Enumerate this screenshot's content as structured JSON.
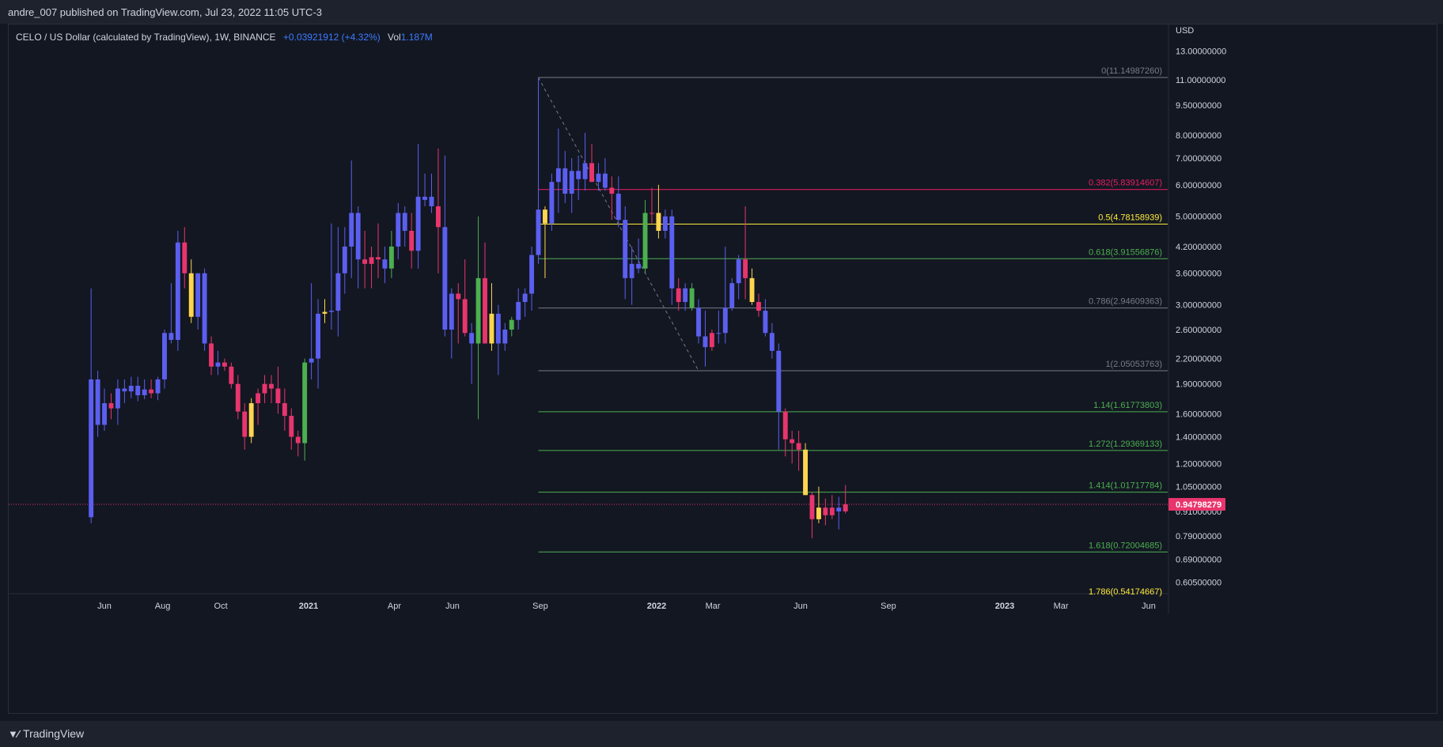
{
  "header": {
    "published": "andre_007 published on TradingView.com, Jul 23, 2022 11:05 UTC-3"
  },
  "legend": {
    "symbol": "CELO / US Dollar (calculated by TradingView), 1W, BINANCE",
    "change": "+0.03921912 (+4.32%)",
    "vol_label": "Vol",
    "vol_value": "1.187M"
  },
  "footer": {
    "brand": "TradingView"
  },
  "chart_data": {
    "type": "candlestick",
    "currency": "USD",
    "y_scale": "log",
    "ylim": [
      0.55,
      14.5
    ],
    "y_ticks": [
      "13.00000000",
      "11.00000000",
      "9.50000000",
      "8.00000000",
      "7.00000000",
      "6.00000000",
      "5.00000000",
      "4.20000000",
      "3.60000000",
      "3.00000000",
      "2.60000000",
      "2.20000000",
      "1.90000000",
      "1.60000000",
      "1.40000000",
      "1.20000000",
      "1.05000000",
      "0.91000000",
      "0.79000000",
      "0.69000000",
      "0.60500000"
    ],
    "x_ticks": [
      {
        "label": "Jun",
        "date": "2020-06-01"
      },
      {
        "label": "Aug",
        "date": "2020-08-01"
      },
      {
        "label": "Oct",
        "date": "2020-10-01"
      },
      {
        "label": "2021",
        "date": "2021-01-01",
        "bold": true
      },
      {
        "label": "Apr",
        "date": "2021-04-01"
      },
      {
        "label": "Jun",
        "date": "2021-06-01"
      },
      {
        "label": "Sep",
        "date": "2021-09-01"
      },
      {
        "label": "2022",
        "date": "2022-01-01",
        "bold": true
      },
      {
        "label": "Mar",
        "date": "2022-03-01"
      },
      {
        "label": "Jun",
        "date": "2022-06-01"
      },
      {
        "label": "Sep",
        "date": "2022-09-01"
      },
      {
        "label": "2023",
        "date": "2023-01-01",
        "bold": true
      },
      {
        "label": "Mar",
        "date": "2023-03-01"
      },
      {
        "label": "Jun",
        "date": "2023-06-01"
      }
    ],
    "last_price": "0.94798279",
    "last_price_value": 0.948,
    "fib": {
      "from_date": "2021-08-30",
      "to_date": "2023-07-15",
      "trend_from": {
        "date": "2021-08-30",
        "price": 11.15
      },
      "trend_to": {
        "date": "2022-02-14",
        "price": 2.05
      },
      "levels": [
        {
          "label": "0(11.14987260)",
          "value": 11.1498726,
          "color": "#787b86"
        },
        {
          "label": "0.382(5.83914607)",
          "value": 5.83914607,
          "color": "#e91e63"
        },
        {
          "label": "0.5(4.78158939)",
          "value": 4.78158939,
          "color": "#ffeb3b"
        },
        {
          "label": "0.618(3.91556876)",
          "value": 3.91556876,
          "color": "#4caf50"
        },
        {
          "label": "0.786(2.94609363)",
          "value": 2.94609363,
          "color": "#787b86"
        },
        {
          "label": "1(2.05053763)",
          "value": 2.05053763,
          "color": "#787b86"
        },
        {
          "label": "1.14(1.61773803)",
          "value": 1.61773803,
          "color": "#4caf50"
        },
        {
          "label": "1.272(1.29369133)",
          "value": 1.29369133,
          "color": "#4caf50"
        },
        {
          "label": "1.414(1.01717784)",
          "value": 1.01717784,
          "color": "#4caf50"
        },
        {
          "label": "1.618(0.72004685)",
          "value": 0.72004685,
          "color": "#4caf50"
        },
        {
          "label": "1.786(0.54174667)",
          "value": 0.54174667,
          "color": "#ffeb3b"
        }
      ]
    },
    "colors": {
      "up": "#5b5ff0",
      "down": "#e8356d",
      "yellow": "#ffd54f",
      "green": "#4caf50",
      "grid": "#2a2e39",
      "bg": "#131722"
    },
    "candles": [
      {
        "date": "2020-05-18",
        "o": 1.95,
        "h": 3.3,
        "l": 0.85,
        "c": 0.88,
        "k": "up"
      },
      {
        "date": "2020-05-25",
        "o": 1.95,
        "h": 2.05,
        "l": 1.4,
        "c": 1.5,
        "k": "up"
      },
      {
        "date": "2020-06-01",
        "o": 1.5,
        "h": 1.85,
        "l": 1.45,
        "c": 1.7,
        "k": "up"
      },
      {
        "date": "2020-06-08",
        "o": 1.7,
        "h": 1.8,
        "l": 1.55,
        "c": 1.65,
        "k": "down"
      },
      {
        "date": "2020-06-15",
        "o": 1.65,
        "h": 1.95,
        "l": 1.5,
        "c": 1.85,
        "k": "up"
      },
      {
        "date": "2020-06-22",
        "o": 1.85,
        "h": 1.95,
        "l": 1.7,
        "c": 1.82,
        "k": "up"
      },
      {
        "date": "2020-06-29",
        "o": 1.82,
        "h": 1.98,
        "l": 1.75,
        "c": 1.88,
        "k": "up"
      },
      {
        "date": "2020-07-06",
        "o": 1.88,
        "h": 1.98,
        "l": 1.72,
        "c": 1.78,
        "k": "up"
      },
      {
        "date": "2020-07-13",
        "o": 1.78,
        "h": 1.95,
        "l": 1.74,
        "c": 1.84,
        "k": "up"
      },
      {
        "date": "2020-07-20",
        "o": 1.84,
        "h": 1.95,
        "l": 1.75,
        "c": 1.8,
        "k": "down"
      },
      {
        "date": "2020-07-27",
        "o": 1.8,
        "h": 1.98,
        "l": 1.73,
        "c": 1.95,
        "k": "up"
      },
      {
        "date": "2020-08-03",
        "o": 1.95,
        "h": 2.6,
        "l": 1.85,
        "c": 2.55,
        "k": "up"
      },
      {
        "date": "2020-08-10",
        "o": 2.55,
        "h": 3.4,
        "l": 2.4,
        "c": 2.45,
        "k": "up"
      },
      {
        "date": "2020-08-17",
        "o": 2.45,
        "h": 4.6,
        "l": 2.3,
        "c": 4.3,
        "k": "up"
      },
      {
        "date": "2020-08-24",
        "o": 4.3,
        "h": 4.7,
        "l": 3.3,
        "c": 3.6,
        "k": "down"
      },
      {
        "date": "2020-08-31",
        "o": 3.6,
        "h": 3.9,
        "l": 2.7,
        "c": 2.8,
        "k": "yellow"
      },
      {
        "date": "2020-09-07",
        "o": 2.8,
        "h": 3.6,
        "l": 2.6,
        "c": 3.6,
        "k": "up"
      },
      {
        "date": "2020-09-14",
        "o": 3.6,
        "h": 3.7,
        "l": 2.3,
        "c": 2.4,
        "k": "up"
      },
      {
        "date": "2020-09-21",
        "o": 2.4,
        "h": 2.5,
        "l": 2.0,
        "c": 2.1,
        "k": "down"
      },
      {
        "date": "2020-09-28",
        "o": 2.1,
        "h": 2.3,
        "l": 2.0,
        "c": 2.15,
        "k": "up"
      },
      {
        "date": "2020-10-05",
        "o": 2.15,
        "h": 2.2,
        "l": 2.05,
        "c": 2.1,
        "k": "down"
      },
      {
        "date": "2020-10-12",
        "o": 2.1,
        "h": 2.15,
        "l": 1.85,
        "c": 1.9,
        "k": "down"
      },
      {
        "date": "2020-10-19",
        "o": 1.9,
        "h": 2.0,
        "l": 1.55,
        "c": 1.62,
        "k": "down"
      },
      {
        "date": "2020-10-26",
        "o": 1.62,
        "h": 1.7,
        "l": 1.3,
        "c": 1.4,
        "k": "down"
      },
      {
        "date": "2020-11-02",
        "o": 1.4,
        "h": 1.75,
        "l": 1.35,
        "c": 1.7,
        "k": "yellow"
      },
      {
        "date": "2020-11-09",
        "o": 1.7,
        "h": 1.85,
        "l": 1.5,
        "c": 1.8,
        "k": "down"
      },
      {
        "date": "2020-11-16",
        "o": 1.8,
        "h": 2.0,
        "l": 1.7,
        "c": 1.9,
        "k": "down"
      },
      {
        "date": "2020-11-23",
        "o": 1.9,
        "h": 2.0,
        "l": 1.7,
        "c": 1.85,
        "k": "down"
      },
      {
        "date": "2020-11-30",
        "o": 1.85,
        "h": 2.1,
        "l": 1.6,
        "c": 1.7,
        "k": "down"
      },
      {
        "date": "2020-12-07",
        "o": 1.7,
        "h": 1.85,
        "l": 1.45,
        "c": 1.58,
        "k": "down"
      },
      {
        "date": "2020-12-14",
        "o": 1.58,
        "h": 1.65,
        "l": 1.3,
        "c": 1.4,
        "k": "down"
      },
      {
        "date": "2020-12-21",
        "o": 1.4,
        "h": 1.45,
        "l": 1.25,
        "c": 1.35,
        "k": "down"
      },
      {
        "date": "2020-12-28",
        "o": 1.35,
        "h": 2.2,
        "l": 1.22,
        "c": 2.15,
        "k": "green"
      },
      {
        "date": "2021-01-04",
        "o": 2.15,
        "h": 3.4,
        "l": 1.95,
        "c": 2.2,
        "k": "up"
      },
      {
        "date": "2021-01-11",
        "o": 2.2,
        "h": 3.1,
        "l": 1.85,
        "c": 2.85,
        "k": "up"
      },
      {
        "date": "2021-01-18",
        "o": 2.85,
        "h": 3.1,
        "l": 2.7,
        "c": 2.88,
        "k": "yellow"
      },
      {
        "date": "2021-01-25",
        "o": 2.88,
        "h": 4.8,
        "l": 2.6,
        "c": 2.9,
        "k": "up"
      },
      {
        "date": "2021-02-01",
        "o": 2.9,
        "h": 4.7,
        "l": 2.5,
        "c": 3.6,
        "k": "up"
      },
      {
        "date": "2021-02-08",
        "o": 3.6,
        "h": 4.7,
        "l": 3.2,
        "c": 4.2,
        "k": "up"
      },
      {
        "date": "2021-02-15",
        "o": 4.2,
        "h": 6.9,
        "l": 3.5,
        "c": 5.1,
        "k": "up"
      },
      {
        "date": "2021-02-22",
        "o": 5.1,
        "h": 5.3,
        "l": 3.3,
        "c": 3.9,
        "k": "up"
      },
      {
        "date": "2021-03-01",
        "o": 3.9,
        "h": 4.6,
        "l": 3.3,
        "c": 3.8,
        "k": "down"
      },
      {
        "date": "2021-03-08",
        "o": 3.8,
        "h": 4.2,
        "l": 3.3,
        "c": 3.95,
        "k": "down"
      },
      {
        "date": "2021-03-15",
        "o": 3.95,
        "h": 4.8,
        "l": 3.5,
        "c": 3.9,
        "k": "down"
      },
      {
        "date": "2021-03-22",
        "o": 3.9,
        "h": 4.2,
        "l": 3.4,
        "c": 3.7,
        "k": "up"
      },
      {
        "date": "2021-03-29",
        "o": 3.7,
        "h": 4.6,
        "l": 3.5,
        "c": 4.2,
        "k": "green"
      },
      {
        "date": "2021-04-05",
        "o": 4.2,
        "h": 5.4,
        "l": 3.9,
        "c": 5.1,
        "k": "up"
      },
      {
        "date": "2021-04-12",
        "o": 5.1,
        "h": 5.3,
        "l": 4.2,
        "c": 4.6,
        "k": "up"
      },
      {
        "date": "2021-04-19",
        "o": 4.6,
        "h": 5.1,
        "l": 3.7,
        "c": 4.1,
        "k": "down"
      },
      {
        "date": "2021-04-26",
        "o": 4.1,
        "h": 7.6,
        "l": 3.7,
        "c": 5.6,
        "k": "up"
      },
      {
        "date": "2021-05-03",
        "o": 5.6,
        "h": 6.4,
        "l": 5.3,
        "c": 5.5,
        "k": "up"
      },
      {
        "date": "2021-05-10",
        "o": 5.6,
        "h": 6.4,
        "l": 5.1,
        "c": 5.3,
        "k": "up"
      },
      {
        "date": "2021-05-17",
        "o": 5.3,
        "h": 7.4,
        "l": 3.6,
        "c": 4.7,
        "k": "down"
      },
      {
        "date": "2021-05-24",
        "o": 4.7,
        "h": 7.1,
        "l": 2.5,
        "c": 2.6,
        "k": "up"
      },
      {
        "date": "2021-05-31",
        "o": 2.6,
        "h": 3.3,
        "l": 2.2,
        "c": 3.2,
        "k": "up"
      },
      {
        "date": "2021-06-07",
        "o": 3.2,
        "h": 3.4,
        "l": 2.4,
        "c": 3.1,
        "k": "down"
      },
      {
        "date": "2021-06-14",
        "o": 3.1,
        "h": 3.9,
        "l": 2.5,
        "c": 2.55,
        "k": "down"
      },
      {
        "date": "2021-06-21",
        "o": 2.55,
        "h": 2.7,
        "l": 1.9,
        "c": 2.4,
        "k": "up"
      },
      {
        "date": "2021-06-28",
        "o": 2.4,
        "h": 5.0,
        "l": 1.55,
        "c": 3.5,
        "k": "green"
      },
      {
        "date": "2021-07-05",
        "o": 3.5,
        "h": 4.3,
        "l": 2.5,
        "c": 2.4,
        "k": "down"
      },
      {
        "date": "2021-07-12",
        "o": 2.4,
        "h": 3.4,
        "l": 2.3,
        "c": 2.85,
        "k": "yellow"
      },
      {
        "date": "2021-07-19",
        "o": 2.85,
        "h": 3.0,
        "l": 2.0,
        "c": 2.4,
        "k": "up"
      },
      {
        "date": "2021-07-26",
        "o": 2.4,
        "h": 2.7,
        "l": 2.3,
        "c": 2.6,
        "k": "up"
      },
      {
        "date": "2021-08-02",
        "o": 2.6,
        "h": 2.8,
        "l": 2.5,
        "c": 2.75,
        "k": "green"
      },
      {
        "date": "2021-08-09",
        "o": 2.75,
        "h": 3.3,
        "l": 2.6,
        "c": 3.05,
        "k": "up"
      },
      {
        "date": "2021-08-16",
        "o": 3.05,
        "h": 3.3,
        "l": 2.8,
        "c": 3.2,
        "k": "up"
      },
      {
        "date": "2021-08-23",
        "o": 3.2,
        "h": 4.2,
        "l": 2.9,
        "c": 4.0,
        "k": "up"
      },
      {
        "date": "2021-08-30",
        "o": 4.0,
        "h": 11.1,
        "l": 3.8,
        "c": 5.2,
        "k": "up"
      },
      {
        "date": "2021-09-06",
        "o": 5.2,
        "h": 5.3,
        "l": 3.5,
        "c": 4.8,
        "k": "yellow"
      },
      {
        "date": "2021-09-13",
        "o": 4.8,
        "h": 6.4,
        "l": 4.6,
        "c": 6.1,
        "k": "up"
      },
      {
        "date": "2021-09-20",
        "o": 6.1,
        "h": 8.3,
        "l": 5.1,
        "c": 6.6,
        "k": "up"
      },
      {
        "date": "2021-09-27",
        "o": 6.6,
        "h": 7.3,
        "l": 5.4,
        "c": 5.7,
        "k": "up"
      },
      {
        "date": "2021-10-04",
        "o": 5.7,
        "h": 7.0,
        "l": 5.1,
        "c": 6.5,
        "k": "up"
      },
      {
        "date": "2021-10-11",
        "o": 6.5,
        "h": 7.1,
        "l": 5.5,
        "c": 6.2,
        "k": "up"
      },
      {
        "date": "2021-10-18",
        "o": 6.2,
        "h": 8.1,
        "l": 5.8,
        "c": 6.8,
        "k": "up"
      },
      {
        "date": "2021-10-25",
        "o": 6.8,
        "h": 7.6,
        "l": 6.1,
        "c": 6.1,
        "k": "down"
      },
      {
        "date": "2021-11-01",
        "o": 6.1,
        "h": 6.8,
        "l": 5.8,
        "c": 6.4,
        "k": "up"
      },
      {
        "date": "2021-11-08",
        "o": 6.4,
        "h": 7.0,
        "l": 5.8,
        "c": 5.9,
        "k": "up"
      },
      {
        "date": "2021-11-15",
        "o": 5.9,
        "h": 6.3,
        "l": 4.9,
        "c": 5.7,
        "k": "down"
      },
      {
        "date": "2021-11-22",
        "o": 5.7,
        "h": 6.3,
        "l": 4.7,
        "c": 4.9,
        "k": "up"
      },
      {
        "date": "2021-11-29",
        "o": 4.9,
        "h": 5.3,
        "l": 3.1,
        "c": 3.5,
        "k": "up"
      },
      {
        "date": "2021-12-06",
        "o": 3.5,
        "h": 4.2,
        "l": 3.0,
        "c": 3.8,
        "k": "up"
      },
      {
        "date": "2021-12-13",
        "o": 3.8,
        "h": 4.4,
        "l": 3.6,
        "c": 3.7,
        "k": "up"
      },
      {
        "date": "2021-12-20",
        "o": 3.7,
        "h": 5.5,
        "l": 3.6,
        "c": 5.1,
        "k": "green"
      },
      {
        "date": "2021-12-27",
        "o": 5.1,
        "h": 5.9,
        "l": 4.8,
        "c": 5.1,
        "k": "down"
      },
      {
        "date": "2022-01-03",
        "o": 5.1,
        "h": 6.0,
        "l": 4.4,
        "c": 4.6,
        "k": "yellow"
      },
      {
        "date": "2022-01-10",
        "o": 4.6,
        "h": 5.2,
        "l": 4.4,
        "c": 5.0,
        "k": "up"
      },
      {
        "date": "2022-01-17",
        "o": 5.0,
        "h": 5.2,
        "l": 3.0,
        "c": 3.3,
        "k": "up"
      },
      {
        "date": "2022-01-24",
        "o": 3.3,
        "h": 3.5,
        "l": 2.9,
        "c": 3.05,
        "k": "down"
      },
      {
        "date": "2022-01-31",
        "o": 3.05,
        "h": 3.4,
        "l": 2.9,
        "c": 3.3,
        "k": "up"
      },
      {
        "date": "2022-02-07",
        "o": 3.3,
        "h": 3.4,
        "l": 2.9,
        "c": 2.95,
        "k": "green"
      },
      {
        "date": "2022-02-14",
        "o": 2.95,
        "h": 3.1,
        "l": 2.4,
        "c": 2.5,
        "k": "up"
      },
      {
        "date": "2022-02-21",
        "o": 2.5,
        "h": 2.9,
        "l": 2.1,
        "c": 2.35,
        "k": "up"
      },
      {
        "date": "2022-02-28",
        "o": 2.35,
        "h": 2.6,
        "l": 2.3,
        "c": 2.55,
        "k": "down"
      },
      {
        "date": "2022-03-07",
        "o": 2.55,
        "h": 2.9,
        "l": 2.4,
        "c": 2.55,
        "k": "up"
      },
      {
        "date": "2022-03-14",
        "o": 2.55,
        "h": 4.2,
        "l": 2.4,
        "c": 2.95,
        "k": "up"
      },
      {
        "date": "2022-03-21",
        "o": 2.95,
        "h": 3.5,
        "l": 2.9,
        "c": 3.4,
        "k": "up"
      },
      {
        "date": "2022-03-28",
        "o": 3.4,
        "h": 4.0,
        "l": 3.1,
        "c": 3.9,
        "k": "up"
      },
      {
        "date": "2022-04-04",
        "o": 3.9,
        "h": 5.3,
        "l": 3.1,
        "c": 3.5,
        "k": "down"
      },
      {
        "date": "2022-04-11",
        "o": 3.5,
        "h": 3.7,
        "l": 3.0,
        "c": 3.05,
        "k": "yellow"
      },
      {
        "date": "2022-04-18",
        "o": 3.05,
        "h": 3.2,
        "l": 2.8,
        "c": 2.9,
        "k": "down"
      },
      {
        "date": "2022-04-25",
        "o": 2.9,
        "h": 3.1,
        "l": 2.5,
        "c": 2.55,
        "k": "up"
      },
      {
        "date": "2022-05-02",
        "o": 2.55,
        "h": 2.7,
        "l": 2.2,
        "c": 2.3,
        "k": "up"
      },
      {
        "date": "2022-05-09",
        "o": 2.3,
        "h": 2.4,
        "l": 1.3,
        "c": 1.62,
        "k": "up"
      },
      {
        "date": "2022-05-16",
        "o": 1.62,
        "h": 1.65,
        "l": 1.25,
        "c": 1.38,
        "k": "down"
      },
      {
        "date": "2022-05-23",
        "o": 1.38,
        "h": 1.45,
        "l": 1.2,
        "c": 1.35,
        "k": "down"
      },
      {
        "date": "2022-05-30",
        "o": 1.35,
        "h": 1.45,
        "l": 1.15,
        "c": 1.3,
        "k": "down"
      },
      {
        "date": "2022-06-06",
        "o": 1.3,
        "h": 1.35,
        "l": 1.0,
        "c": 1.0,
        "k": "yellow"
      },
      {
        "date": "2022-06-13",
        "o": 1.0,
        "h": 1.02,
        "l": 0.78,
        "c": 0.87,
        "k": "down"
      },
      {
        "date": "2022-06-20",
        "o": 0.87,
        "h": 1.05,
        "l": 0.85,
        "c": 0.93,
        "k": "yellow"
      },
      {
        "date": "2022-06-27",
        "o": 0.93,
        "h": 0.98,
        "l": 0.84,
        "c": 0.89,
        "k": "down"
      },
      {
        "date": "2022-07-04",
        "o": 0.89,
        "h": 1.0,
        "l": 0.87,
        "c": 0.93,
        "k": "down"
      },
      {
        "date": "2022-07-11",
        "o": 0.93,
        "h": 0.99,
        "l": 0.82,
        "c": 0.91,
        "k": "up"
      },
      {
        "date": "2022-07-18",
        "o": 0.91,
        "h": 1.06,
        "l": 0.9,
        "c": 0.948,
        "k": "down"
      }
    ]
  }
}
